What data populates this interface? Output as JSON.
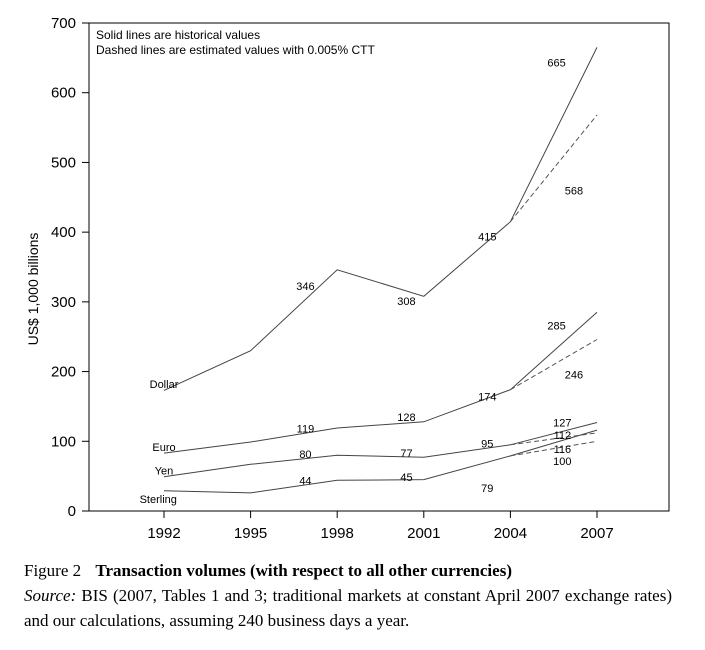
{
  "chart_data": {
    "type": "line",
    "ylabel": "US$ 1,000 billions",
    "ylim": [
      0,
      700
    ],
    "yticks": [
      0,
      100,
      200,
      300,
      400,
      500,
      600,
      700
    ],
    "x": [
      1992,
      1995,
      1998,
      2001,
      2004,
      2007
    ],
    "xtick_labels": [
      "1992",
      "1995",
      "1998",
      "2001",
      "2004",
      "2007"
    ],
    "legend_lines": [
      "Solid lines are historical values",
      "Dashed lines are estimated values with 0.005% CTT"
    ],
    "series": [
      {
        "name": "Dollar",
        "style": "solid",
        "x": [
          1992,
          1995,
          1998,
          2001,
          2004,
          2007
        ],
        "values": [
          173,
          230,
          346,
          308,
          415,
          665
        ]
      },
      {
        "name": "Euro",
        "style": "solid",
        "x": [
          1992,
          1995,
          1998,
          2001,
          2004,
          2007
        ],
        "values": [
          83,
          99,
          119,
          128,
          174,
          285
        ]
      },
      {
        "name": "Yen",
        "style": "solid",
        "x": [
          1992,
          1995,
          1998,
          2001,
          2004,
          2007
        ],
        "values": [
          49,
          67,
          80,
          77,
          95,
          127
        ]
      },
      {
        "name": "Sterling",
        "style": "solid",
        "x": [
          1992,
          1995,
          1998,
          2001,
          2004,
          2007
        ],
        "values": [
          29,
          26,
          44,
          45,
          79,
          116
        ]
      },
      {
        "style": "dashed",
        "x": [
          2004,
          2007
        ],
        "values": [
          415,
          568
        ]
      },
      {
        "style": "dashed",
        "x": [
          2004,
          2007
        ],
        "values": [
          174,
          246
        ]
      },
      {
        "style": "dashed",
        "x": [
          2004,
          2007
        ],
        "values": [
          95,
          112
        ]
      },
      {
        "style": "dashed",
        "x": [
          2004,
          2007
        ],
        "values": [
          79,
          100
        ]
      }
    ],
    "point_labels": [
      {
        "text": "Dollar",
        "x": 1992,
        "y": 182
      },
      {
        "text": "346",
        "x": 1996.9,
        "y": 323
      },
      {
        "text": "308",
        "x": 2000.4,
        "y": 301
      },
      {
        "text": "415",
        "x": 2003.2,
        "y": 394
      },
      {
        "text": "665",
        "x": 2005.6,
        "y": 643
      },
      {
        "text": "568",
        "x": 2006.2,
        "y": 460
      },
      {
        "text": "Euro",
        "x": 1992,
        "y": 92
      },
      {
        "text": "119",
        "x": 1996.9,
        "y": 118
      },
      {
        "text": "128",
        "x": 2000.4,
        "y": 135
      },
      {
        "text": "174",
        "x": 2003.2,
        "y": 164
      },
      {
        "text": "285",
        "x": 2005.6,
        "y": 266
      },
      {
        "text": "246",
        "x": 2006.2,
        "y": 196
      },
      {
        "text": "Yen",
        "x": 1992,
        "y": 58
      },
      {
        "text": "80",
        "x": 1996.9,
        "y": 82
      },
      {
        "text": "77",
        "x": 2000.4,
        "y": 83
      },
      {
        "text": "95",
        "x": 2003.2,
        "y": 97
      },
      {
        "text": "127",
        "x": 2005.8,
        "y": 127
      },
      {
        "text": "112",
        "x": 2005.8,
        "y": 109
      },
      {
        "text": "Sterling",
        "x": 1991.8,
        "y": 17
      },
      {
        "text": "44",
        "x": 1996.9,
        "y": 44
      },
      {
        "text": "45",
        "x": 2000.4,
        "y": 49
      },
      {
        "text": "79",
        "x": 2003.2,
        "y": 33
      },
      {
        "text": "116",
        "x": 2005.8,
        "y": 89
      },
      {
        "text": "100",
        "x": 2005.8,
        "y": 72
      }
    ]
  },
  "caption": {
    "figure_number": "Figure 2",
    "title": "Transaction volumes (with respect to all other currencies)",
    "source_label": "Source:",
    "source_text": " BIS (2007, Tables 1 and 3; traditional markets at constant April 2007 exchange rates) and our calculations, assuming 240 business days a year."
  }
}
